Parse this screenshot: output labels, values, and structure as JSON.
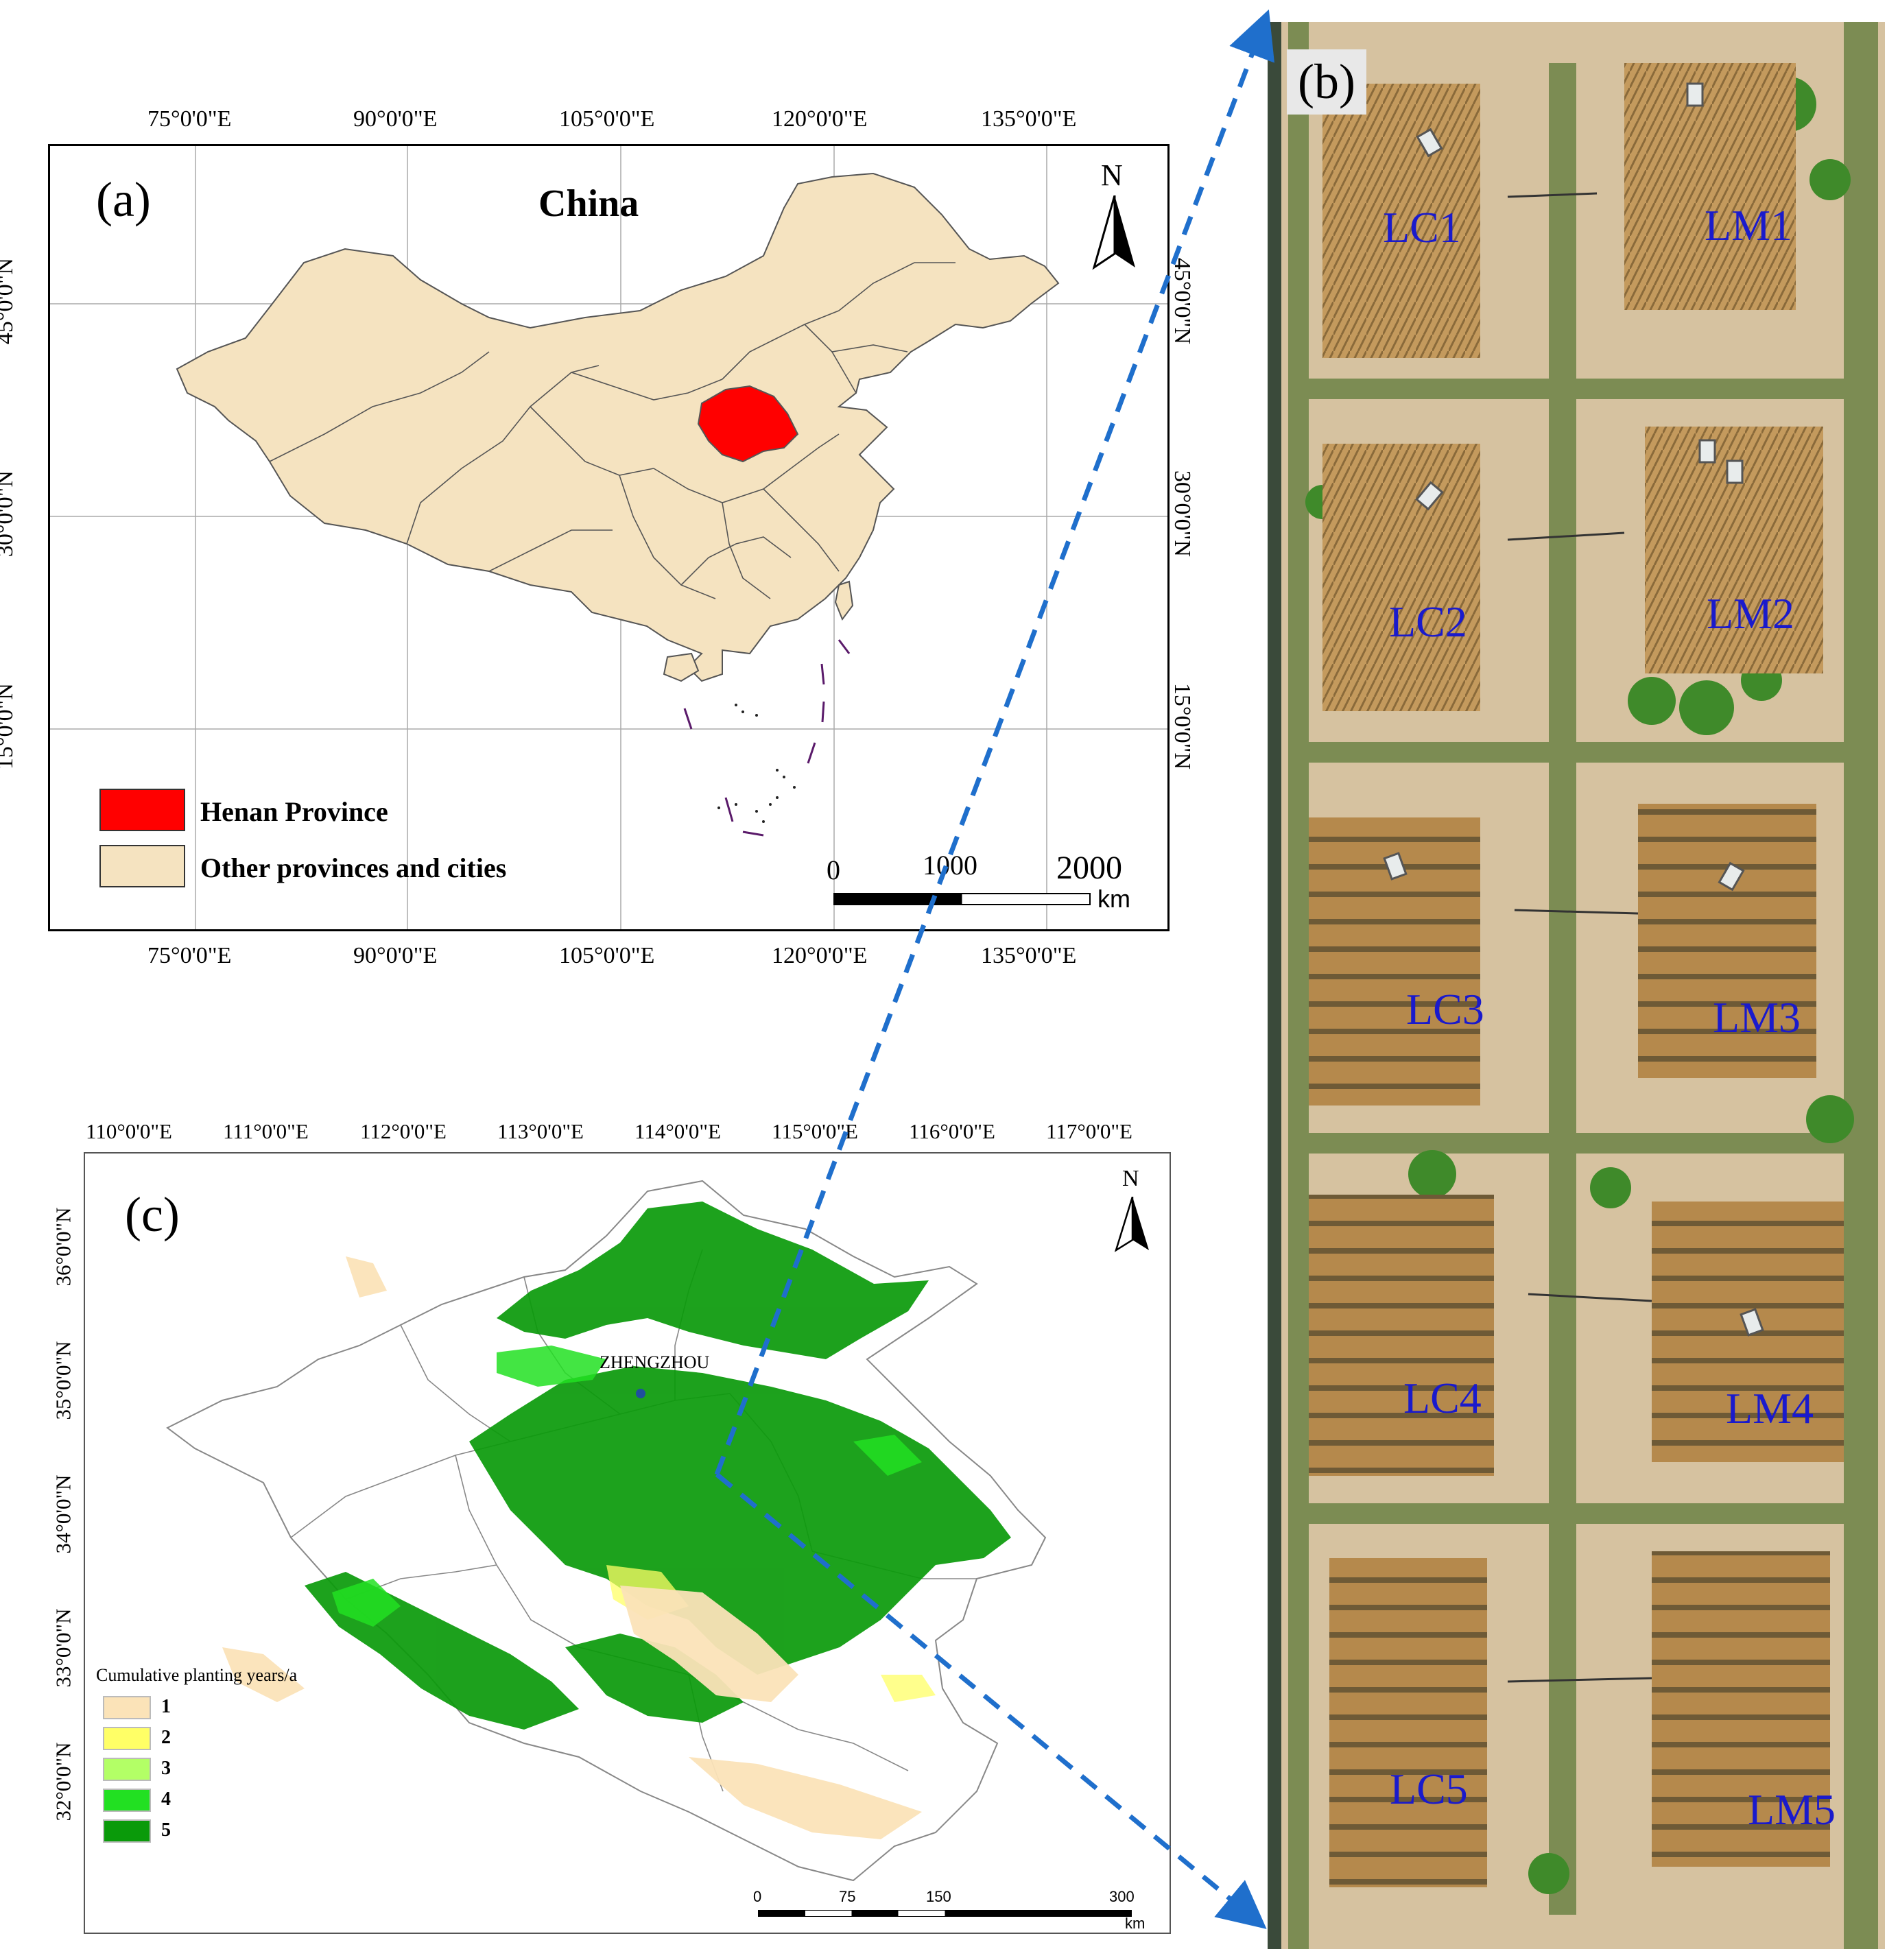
{
  "panel_a": {
    "label": "(a)",
    "title": "China",
    "north": "N",
    "lon_ticks": [
      "75°0'0\"E",
      "90°0'0\"E",
      "105°0'0\"E",
      "120°0'0\"E",
      "135°0'0\"E"
    ],
    "lat_ticks": [
      "45°0'0\"N",
      "30°0'0\"N",
      "15°0'0\"N"
    ],
    "legend": [
      {
        "label": "Henan Province",
        "color": "#ff0000"
      },
      {
        "label": "Other provinces and cities",
        "color": "#f5e3c0"
      }
    ],
    "scale": {
      "ticks": [
        "0",
        "1000",
        "2000"
      ],
      "unit": "km"
    },
    "colors": {
      "land": "#f5e3c0",
      "henan": "#ff0000",
      "border": "#555555"
    }
  },
  "panel_b": {
    "label": "(b)",
    "plots": [
      "LC1",
      "LM1",
      "LC2",
      "LM2",
      "LC3",
      "LM3",
      "LC4",
      "LM4",
      "LC5",
      "LM5"
    ],
    "colors": {
      "ground": "#d8c4a3",
      "crop": "#b58a4e",
      "label": "#1a1acc"
    }
  },
  "panel_c": {
    "label": "(c)",
    "north": "N",
    "city": "ZHENGZHOU",
    "lon_ticks": [
      "110°0'0\"E",
      "111°0'0\"E",
      "112°0'0\"E",
      "113°0'0\"E",
      "114°0'0\"E",
      "115°0'0\"E",
      "116°0'0\"E",
      "117°0'0\"E"
    ],
    "lat_ticks": [
      "36°0'0\"N",
      "35°0'0\"N",
      "34°0'0\"N",
      "33°0'0\"N",
      "32°0'0\"N"
    ],
    "legend_title": "Cumulative planting years/a",
    "legend": [
      {
        "label": "1",
        "color": "#fbe3b8"
      },
      {
        "label": "2",
        "color": "#ffff66"
      },
      {
        "label": "3",
        "color": "#b3ff66"
      },
      {
        "label": "4",
        "color": "#22e022"
      },
      {
        "label": "5",
        "color": "#0a9a0a"
      }
    ],
    "scale": {
      "ticks": [
        "0",
        "75",
        "150",
        "300"
      ],
      "unit": "km"
    }
  },
  "colors": {
    "arrow": "#1f6fcc"
  }
}
